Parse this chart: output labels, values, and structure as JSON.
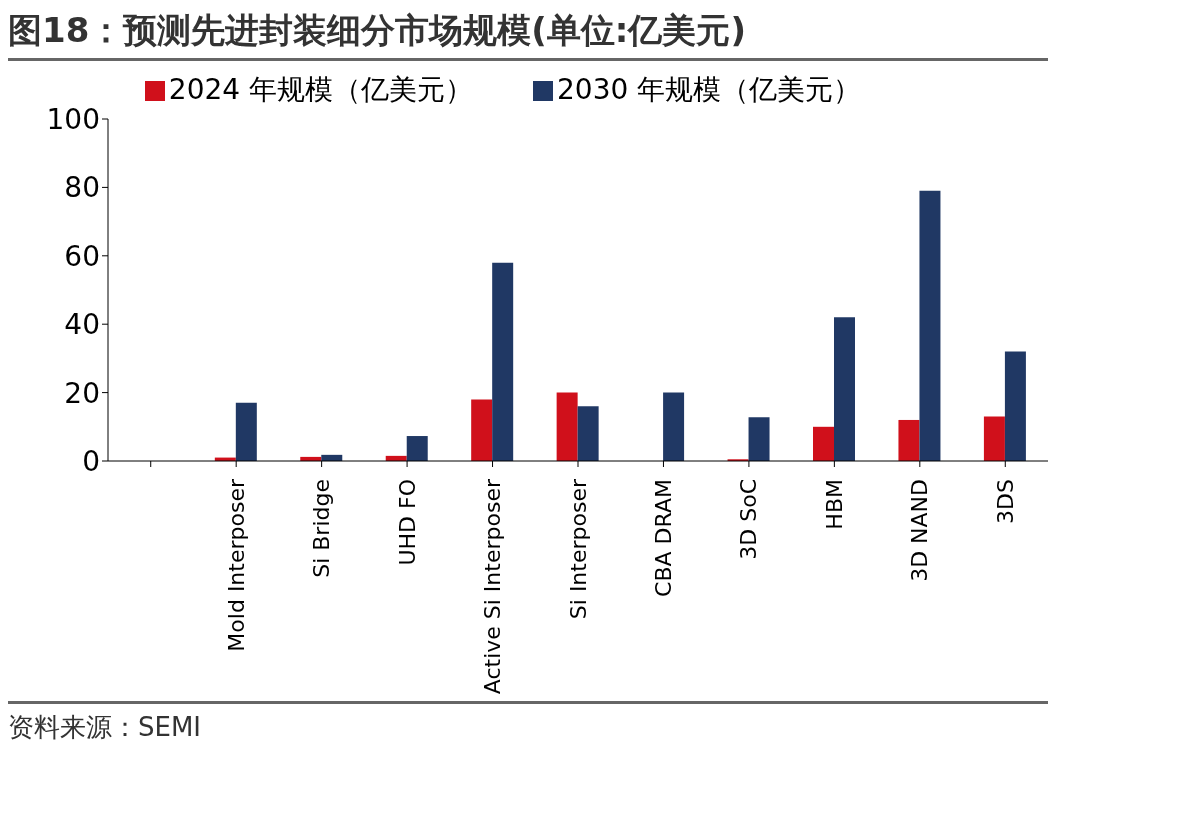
{
  "chart_data": {
    "type": "bar",
    "title": "图18：预测先进封装细分市场规模(单位:亿美元)",
    "categories": [
      null,
      "Mold Interposer",
      "Si Bridge",
      "UHD FO",
      "Active Si Interposer",
      "Si Interposer",
      "CBA DRAM",
      "3D SoC",
      "HBM",
      "3D NAND",
      "3DS"
    ],
    "series": [
      {
        "name": "2024 年规模（亿美元）",
        "color": "#d0101b",
        "values": [
          0,
          1,
          1.2,
          1.5,
          18,
          20,
          0,
          0.5,
          10,
          12,
          13
        ]
      },
      {
        "name": "2030 年规模（亿美元）",
        "color": "#203864",
        "values": [
          0,
          17,
          1.8,
          7.3,
          58,
          16,
          20,
          12.8,
          42,
          79,
          32
        ]
      }
    ],
    "ylim": [
      0,
      100
    ],
    "yticks": [
      0,
      20,
      40,
      60,
      80,
      100
    ],
    "grid": false,
    "legend": "top",
    "annotations": [
      "资料来源：SEMI"
    ]
  }
}
